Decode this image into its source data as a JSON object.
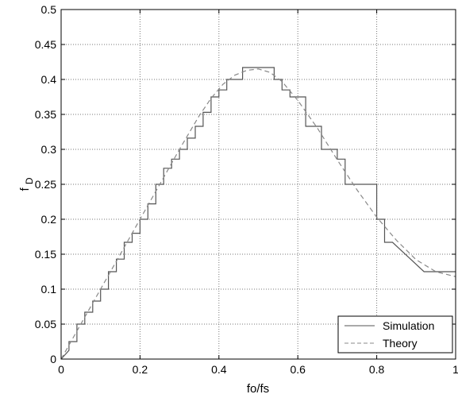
{
  "chart_data": {
    "type": "line",
    "title": "",
    "xlabel": "fo/fs",
    "ylabel_main": "f",
    "ylabel_sub": "D",
    "xlim": [
      0,
      1
    ],
    "ylim": [
      0,
      0.5
    ],
    "xticks": [
      0,
      0.2,
      0.4,
      0.6,
      0.8,
      1
    ],
    "xtick_labels": [
      "0",
      "0.2",
      "0.4",
      "0.6",
      "0.8",
      "1"
    ],
    "yticks": [
      0,
      0.05,
      0.1,
      0.15,
      0.2,
      0.25,
      0.3,
      0.35,
      0.4,
      0.45,
      0.5
    ],
    "ytick_labels": [
      "0",
      "0.05",
      "0.1",
      "0.15",
      "0.2",
      "0.25",
      "0.3",
      "0.35",
      "0.4",
      "0.45",
      "0.5"
    ],
    "grid": true,
    "legend_position": "bottom-right",
    "series": [
      {
        "name": "Simulation",
        "style": "solid",
        "color": "#555555",
        "x": [
          0,
          0.02,
          0.02,
          0.04,
          0.04,
          0.06,
          0.06,
          0.08,
          0.08,
          0.1,
          0.1,
          0.12,
          0.12,
          0.14,
          0.14,
          0.16,
          0.16,
          0.18,
          0.18,
          0.2,
          0.2,
          0.22,
          0.22,
          0.24,
          0.24,
          0.26,
          0.26,
          0.28,
          0.28,
          0.3,
          0.3,
          0.32,
          0.32,
          0.34,
          0.34,
          0.36,
          0.36,
          0.38,
          0.38,
          0.4,
          0.4,
          0.42,
          0.42,
          0.46,
          0.46,
          0.54,
          0.54,
          0.56,
          0.56,
          0.58,
          0.58,
          0.62,
          0.62,
          0.66,
          0.66,
          0.7,
          0.7,
          0.72,
          0.72,
          0.8,
          0.8,
          0.82,
          0.82,
          0.84,
          0.84,
          0.92,
          0.92,
          1.0
        ],
        "y": [
          0,
          0.0125,
          0.025,
          0.025,
          0.05,
          0.05,
          0.067,
          0.067,
          0.083,
          0.083,
          0.1,
          0.1,
          0.125,
          0.125,
          0.143,
          0.143,
          0.167,
          0.167,
          0.18,
          0.18,
          0.2,
          0.2,
          0.222,
          0.222,
          0.25,
          0.25,
          0.273,
          0.273,
          0.286,
          0.286,
          0.3,
          0.3,
          0.316,
          0.316,
          0.333,
          0.333,
          0.353,
          0.353,
          0.375,
          0.375,
          0.385,
          0.385,
          0.4,
          0.4,
          0.417,
          0.417,
          0.4,
          0.4,
          0.385,
          0.385,
          0.375,
          0.375,
          0.333,
          0.333,
          0.3,
          0.3,
          0.286,
          0.286,
          0.25,
          0.25,
          0.2,
          0.2,
          0.167,
          0.167,
          0.167,
          0.125,
          0.125,
          0.125
        ]
      },
      {
        "name": "Theory",
        "style": "dashed",
        "color": "#888888",
        "x": [
          0,
          0.05,
          0.1,
          0.15,
          0.2,
          0.25,
          0.3,
          0.35,
          0.38,
          0.41,
          0.44,
          0.47,
          0.5,
          0.53,
          0.56,
          0.6,
          0.65,
          0.7,
          0.75,
          0.8,
          0.85,
          0.9,
          0.95,
          1.0
        ],
        "y": [
          0,
          0.05,
          0.1,
          0.15,
          0.2,
          0.25,
          0.3,
          0.348,
          0.373,
          0.393,
          0.406,
          0.413,
          0.415,
          0.41,
          0.397,
          0.37,
          0.33,
          0.285,
          0.242,
          0.203,
          0.17,
          0.142,
          0.125,
          0.118
        ]
      }
    ]
  }
}
